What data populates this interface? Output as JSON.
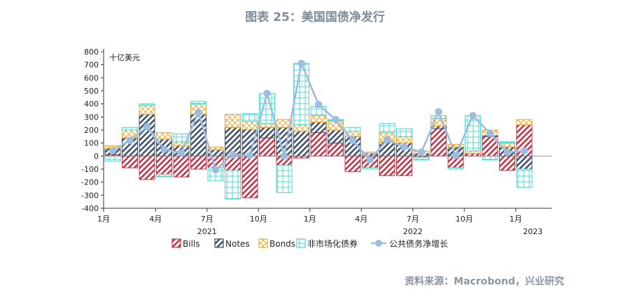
{
  "title": "图表 25：美国国债净发行",
  "source": "资料来源：Macrobond，兴业研究",
  "chart_data": {
    "type": "bar",
    "unit_label": "十亿美元",
    "ylim": [
      -400,
      800
    ],
    "y_ticks": [
      800,
      700,
      600,
      500,
      400,
      300,
      200,
      100,
      0,
      -100,
      -200,
      -300,
      -400
    ],
    "x_tick_labels": [
      "1月",
      "4月",
      "7月",
      "10月",
      "1月",
      "4月",
      "7月",
      "10月",
      "1月"
    ],
    "x_tick_index": [
      0,
      3,
      6,
      9,
      12,
      15,
      18,
      21,
      24
    ],
    "year_labels": [
      {
        "label": "2021",
        "index": 6
      },
      {
        "label": "2022",
        "index": 18
      },
      {
        "label": "2023",
        "index": 25
      }
    ],
    "categories": [
      "2021-01",
      "2021-02",
      "2021-03",
      "2021-04",
      "2021-05",
      "2021-06",
      "2021-07",
      "2021-08",
      "2021-09",
      "2021-10",
      "2021-11",
      "2021-12",
      "2022-01",
      "2022-02",
      "2022-03",
      "2022-04",
      "2022-05",
      "2022-06",
      "2022-07",
      "2022-08",
      "2022-09",
      "2022-10",
      "2022-11",
      "2022-12",
      "2023-01",
      "2023-02"
    ],
    "colors": {
      "Bills": "#c0394b",
      "Notes": "#44546a",
      "Bonds": "#f0a830",
      "非市场化债券": "#4dd9d0",
      "公共债务净增长": "#9dbde0"
    },
    "series": [
      {
        "name": "Bills",
        "values": [
          10,
          -90,
          -180,
          -140,
          -160,
          -100,
          -90,
          -110,
          -320,
          140,
          -70,
          -15,
          180,
          100,
          -120,
          -90,
          -150,
          -150,
          -10,
          210,
          -90,
          20,
          150,
          -110,
          240,
          0
        ]
      },
      {
        "name": "Notes",
        "values": [
          50,
          140,
          320,
          130,
          80,
          320,
          50,
          220,
          205,
          80,
          220,
          190,
          80,
          100,
          150,
          20,
          110,
          100,
          20,
          20,
          70,
          0,
          10,
          70,
          -100,
          0
        ]
      },
      {
        "name": "Bonds",
        "values": [
          20,
          60,
          70,
          50,
          30,
          80,
          20,
          100,
          60,
          30,
          60,
          50,
          50,
          70,
          40,
          10,
          70,
          50,
          20,
          60,
          20,
          20,
          40,
          30,
          40,
          0
        ]
      },
      {
        "name": "非市场化债券",
        "values": [
          -40,
          20,
          10,
          -20,
          60,
          20,
          -100,
          -220,
          60,
          230,
          -210,
          470,
          70,
          10,
          30,
          -10,
          70,
          60,
          -20,
          20,
          -10,
          270,
          -30,
          10,
          -140,
          0
        ]
      },
      {
        "name": "公共债务净增长",
        "values": [
          40,
          120,
          225,
          50,
          25,
          335,
          -105,
          10,
          5,
          480,
          0,
          710,
          395,
          280,
          120,
          -30,
          125,
          70,
          30,
          340,
          5,
          310,
          175,
          30,
          40,
          null
        ]
      }
    ]
  }
}
